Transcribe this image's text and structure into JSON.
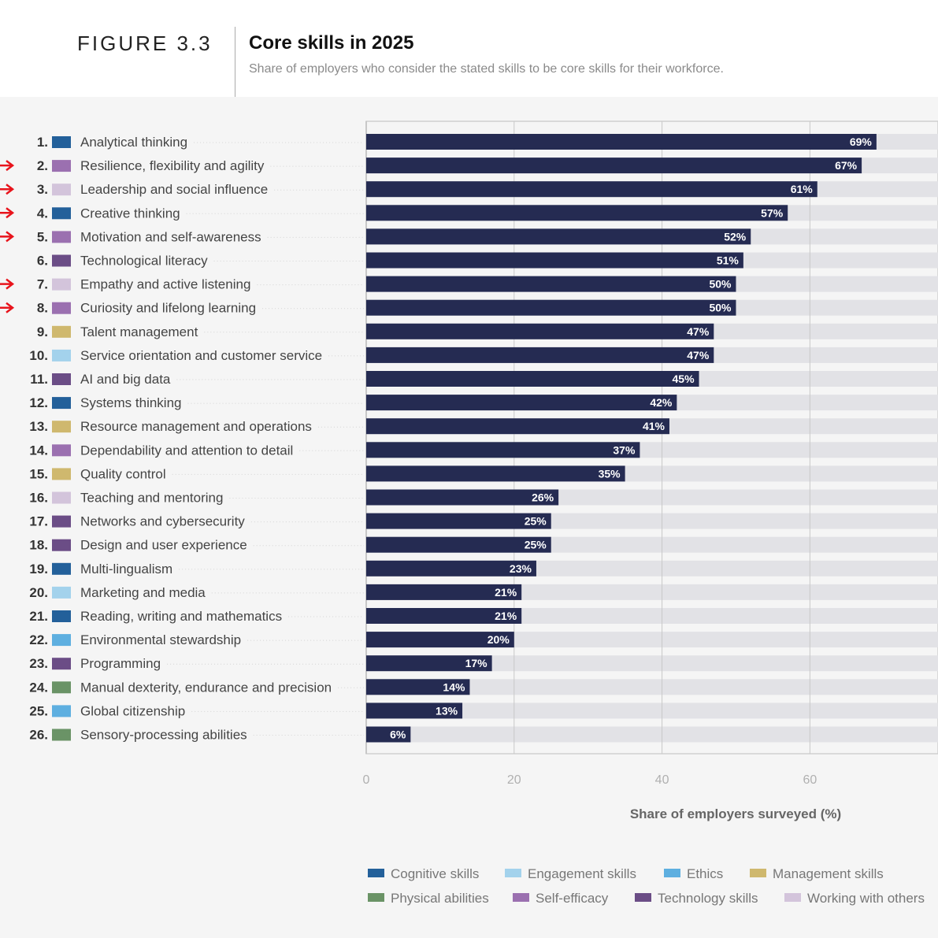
{
  "header": {
    "figure_label": "FIGURE 3.3",
    "title": "Core skills in 2025",
    "subtitle": "Share of employers who consider the stated skills to be core skills for their workforce."
  },
  "colors": {
    "bar": "#252b52",
    "track": "#e2e2e6",
    "arrow": "#e8141c",
    "categories": {
      "Cognitive skills": "#23609a",
      "Engagement skills": "#a3d2ec",
      "Ethics": "#5eafe0",
      "Management skills": "#cfb86e",
      "Physical abilities": "#6a9366",
      "Self-efficacy": "#9b70b0",
      "Technology skills": "#6b4d86",
      "Working with others": "#d3c4db"
    }
  },
  "chart_data": {
    "type": "bar",
    "orientation": "horizontal",
    "title": "Core skills in 2025",
    "subtitle": "Share of employers who consider the stated skills to be core skills for their workforce.",
    "xlabel": "Share of employers surveyed (%)",
    "ylabel": "",
    "xlim": [
      0,
      77
    ],
    "xticks": [
      0,
      20,
      40,
      60
    ],
    "grid": true,
    "legend_position": "bottom",
    "categories": [
      "Analytical thinking",
      "Resilience, flexibility and agility",
      "Leadership and social influence",
      "Creative thinking",
      "Motivation and self-awareness",
      "Technological literacy",
      "Empathy and active listening",
      "Curiosity and lifelong learning",
      "Talent management",
      "Service orientation and customer service",
      "AI and big data",
      "Systems thinking",
      "Resource management and operations",
      "Dependability and attention to detail",
      "Quality control",
      "Teaching and mentoring",
      "Networks and cybersecurity",
      "Design and user experience",
      "Multi-lingualism",
      "Marketing and media",
      "Reading, writing and mathematics",
      "Environmental stewardship",
      "Programming",
      "Manual dexterity, endurance and precision",
      "Global citizenship",
      "Sensory-processing abilities"
    ],
    "values": [
      69,
      67,
      61,
      57,
      52,
      51,
      50,
      50,
      47,
      47,
      45,
      42,
      41,
      37,
      35,
      26,
      25,
      25,
      23,
      21,
      21,
      20,
      17,
      14,
      13,
      6
    ],
    "data_labels": [
      "69%",
      "67%",
      "61%",
      "57%",
      "52%",
      "51%",
      "50%",
      "50%",
      "47%",
      "47%",
      "45%",
      "42%",
      "41%",
      "37%",
      "35%",
      "26%",
      "25%",
      "25%",
      "23%",
      "21%",
      "21%",
      "20%",
      "17%",
      "14%",
      "13%",
      "6%"
    ],
    "ranks": [
      "1.",
      "2.",
      "3.",
      "4.",
      "5.",
      "6.",
      "7.",
      "8.",
      "9.",
      "10.",
      "11.",
      "12.",
      "13.",
      "14.",
      "15.",
      "16.",
      "17.",
      "18.",
      "19.",
      "20.",
      "21.",
      "22.",
      "23.",
      "24.",
      "25.",
      "26."
    ],
    "skill_category": [
      "Cognitive skills",
      "Self-efficacy",
      "Working with others",
      "Cognitive skills",
      "Self-efficacy",
      "Technology skills",
      "Working with others",
      "Self-efficacy",
      "Management skills",
      "Engagement skills",
      "Technology skills",
      "Cognitive skills",
      "Management skills",
      "Self-efficacy",
      "Management skills",
      "Working with others",
      "Technology skills",
      "Technology skills",
      "Cognitive skills",
      "Engagement skills",
      "Cognitive skills",
      "Ethics",
      "Technology skills",
      "Physical abilities",
      "Ethics",
      "Physical abilities"
    ],
    "annotated_arrows": [
      2,
      3,
      4,
      5,
      7,
      8
    ],
    "legend": [
      "Cognitive skills",
      "Engagement skills",
      "Ethics",
      "Management skills",
      "Physical abilities",
      "Self-efficacy",
      "Technology skills",
      "Working with others"
    ]
  }
}
